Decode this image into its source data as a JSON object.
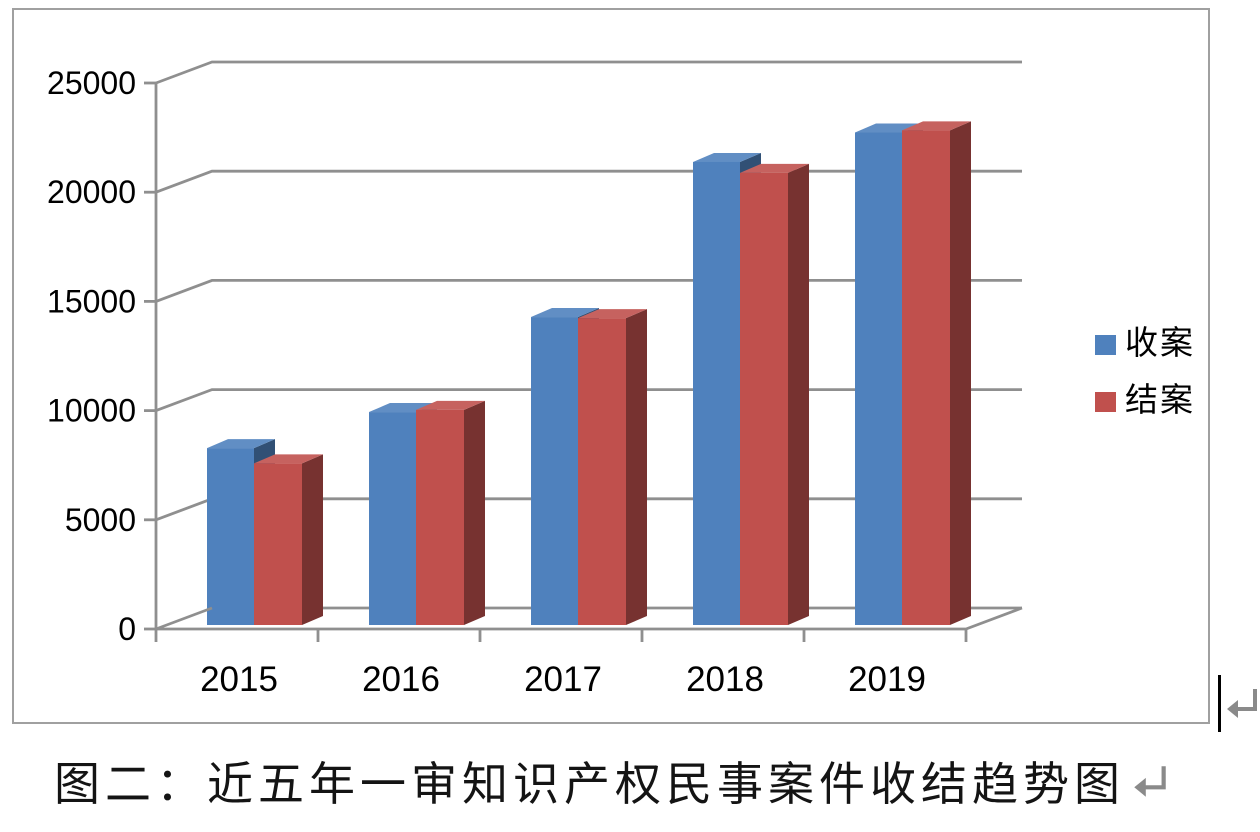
{
  "chart_data": {
    "type": "bar",
    "style": "3d-clustered",
    "title": "",
    "xlabel": "",
    "ylabel": "",
    "categories": [
      "2015",
      "2016",
      "2017",
      "2018",
      "2019"
    ],
    "series": [
      {
        "name": "收案",
        "color": "#4F81BD",
        "values": [
          8100,
          9750,
          14100,
          21200,
          22550
        ]
      },
      {
        "name": "结案",
        "color": "#C0504D",
        "values": [
          7400,
          9850,
          14050,
          20700,
          22650
        ]
      }
    ],
    "ylim": [
      0,
      25000
    ],
    "ytick_step": 5000,
    "ytick_labels": [
      "0",
      "5000",
      "10000",
      "15000",
      "20000",
      "25000"
    ],
    "grid": true,
    "legend_position": "right",
    "gridline_color": "#8f8f8f",
    "axis_text_color": "#000000"
  },
  "legend": {
    "items": [
      {
        "label": "收案",
        "color": "#4F81BD"
      },
      {
        "label": "结案",
        "color": "#C0504D"
      }
    ]
  },
  "caption": {
    "text": "图二：近五年一审知识产权民事案件收结趋势图"
  },
  "editor": {
    "paragraph_mark": "↵",
    "paragraph_mark_color": "#8a8a8a",
    "cursor_visible": true
  }
}
